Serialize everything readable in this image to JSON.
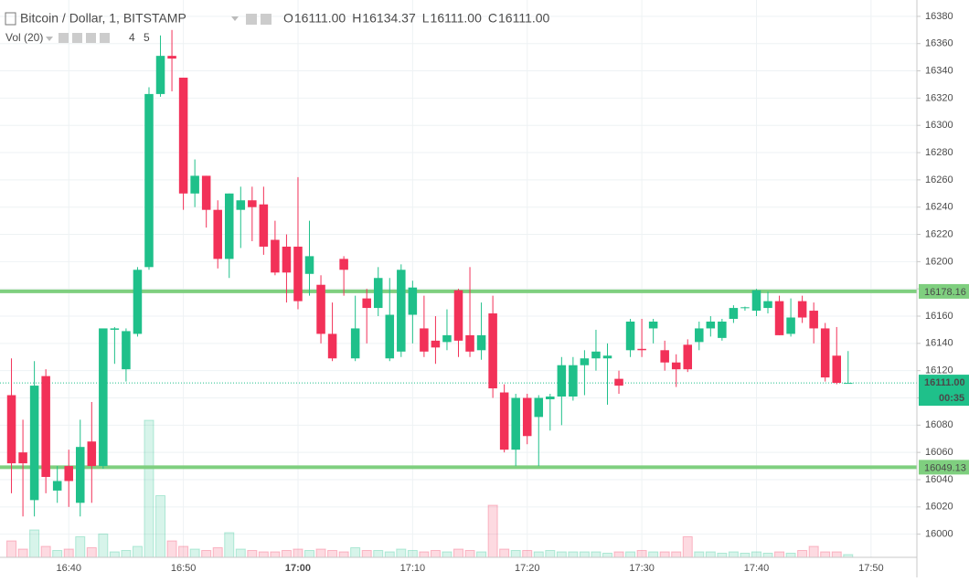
{
  "chart_data": {
    "type": "candlestick",
    "title": "Bitcoin / Dollar, 1, BITSTAMP",
    "legend_ohlc": [
      {
        "key": "O",
        "value": 16111,
        "label": "16111.00"
      },
      {
        "key": "H",
        "value": 16134.37,
        "label": "16134.37"
      },
      {
        "key": "L",
        "value": 16111,
        "label": "16111.00"
      },
      {
        "key": "C",
        "value": 16111,
        "label": "16111.00"
      }
    ],
    "volume_title": "Vol (20)",
    "volume_legend": [
      4,
      5
    ],
    "up_color": "#1fc08a",
    "down_color": "#f23158",
    "x": [
      "16:35",
      "16:36",
      "16:37",
      "16:38",
      "16:39",
      "16:40",
      "16:41",
      "16:42",
      "16:43",
      "16:44",
      "16:45",
      "16:46",
      "16:47",
      "16:48",
      "16:49",
      "16:50",
      "16:51",
      "16:52",
      "16:53",
      "16:54",
      "16:55",
      "16:56",
      "16:57",
      "16:58",
      "16:59",
      "17:00",
      "17:01",
      "17:02",
      "17:03",
      "17:04",
      "17:05",
      "17:06",
      "17:07",
      "17:08",
      "17:09",
      "17:10",
      "17:11",
      "17:12",
      "17:13",
      "17:14",
      "17:15",
      "17:16",
      "17:17",
      "17:18",
      "17:19",
      "17:20",
      "17:21",
      "17:22",
      "17:23",
      "17:24",
      "17:25",
      "17:26",
      "17:27",
      "17:28",
      "17:29",
      "17:30",
      "17:31",
      "17:32",
      "17:33",
      "17:34",
      "17:35",
      "17:36",
      "17:37",
      "17:38",
      "17:39",
      "17:40",
      "17:41",
      "17:42",
      "17:43",
      "17:44",
      "17:45",
      "17:46",
      "17:47",
      "17:48"
    ],
    "open": [
      16102,
      16060,
      16025,
      16116,
      16032,
      16050,
      16023,
      16068,
      16050,
      16150,
      16121,
      16147,
      16196,
      16323,
      16351,
      16335,
      16250,
      16263,
      16238,
      16202,
      16238,
      16245,
      16242,
      16216,
      16211,
      16211,
      16191,
      16183,
      16147,
      16202,
      16129,
      16173,
      16166,
      16129,
      16134,
      16161,
      16151,
      16142,
      16141,
      16179,
      16146,
      16135,
      16162,
      16104,
      16062,
      16100,
      16086,
      16099,
      16101,
      16101,
      16124,
      16129,
      16129,
      16114,
      16135,
      16136,
      16151,
      16135,
      16126,
      16139,
      16141,
      16151,
      16144,
      16158,
      16166,
      16164,
      16166,
      16171,
      16147,
      16171,
      16164,
      16151,
      16131,
      16111
    ],
    "high": [
      16129,
      16084,
      16127,
      16121,
      16050,
      16062,
      16084,
      16097,
      16151,
      16152,
      16151,
      16196,
      16328,
      16366,
      16370,
      16335,
      16275,
      16263,
      16245,
      16250,
      16255,
      16255,
      16255,
      16230,
      16220,
      16262,
      16230,
      16190,
      16170,
      16204,
      16175,
      16180,
      16196,
      16188,
      16198,
      16186,
      16175,
      16160,
      16165,
      16180,
      16196,
      16170,
      16175,
      16110,
      16103,
      16103,
      16102,
      16103,
      16130,
      16130,
      16135,
      16150,
      16140,
      16120,
      16158,
      16158,
      16158,
      16142,
      16132,
      16143,
      16156,
      16160,
      16158,
      16168,
      16167,
      16180,
      16178,
      16175,
      16173,
      16175,
      16170,
      16155,
      16152,
      16134.37
    ],
    "low": [
      16030,
      16013,
      16013,
      16030,
      16023,
      16020,
      16013,
      16023,
      16048,
      16125,
      16112,
      16145,
      16194,
      16321,
      16325,
      16238,
      16240,
      16225,
      16195,
      16188,
      16210,
      16215,
      16205,
      16190,
      16170,
      16165,
      16175,
      16140,
      16127,
      16175,
      16127,
      16140,
      16160,
      16127,
      16130,
      16140,
      16130,
      16125,
      16135,
      16130,
      16130,
      16128,
      16100,
      16060,
      16050,
      16066,
      16050,
      16076,
      16080,
      16098,
      16102,
      16120,
      16095,
      16103,
      16130,
      16130,
      16140,
      16120,
      16108,
      16119,
      16135,
      16145,
      16142,
      16155,
      16164,
      16160,
      16162,
      16146,
      16145,
      16155,
      16140,
      16112,
      16110,
      16111
    ],
    "close": [
      16052,
      16052,
      16109,
      16042,
      16039,
      16039,
      16064,
      16050,
      16151,
      16151,
      16149,
      16194,
      16323,
      16351,
      16349,
      16250,
      16263,
      16238,
      16202,
      16250,
      16245,
      16240,
      16211,
      16192,
      16192,
      16171,
      16204,
      16147,
      16129,
      16194,
      16151,
      16166,
      16188,
      16161,
      16194,
      16181,
      16134,
      16137,
      16146,
      16142,
      16134,
      16146,
      16107,
      16062,
      16100,
      16072,
      16100,
      16101,
      16124,
      16124,
      16129,
      16134,
      16131,
      16109,
      16156,
      16135,
      16156,
      16126,
      16121,
      16121,
      16151,
      16156,
      16156,
      16166,
      16166.5,
      16179,
      16171,
      16146,
      16159,
      16159,
      16151,
      16115,
      16111,
      16111
    ],
    "volume": [
      12,
      6,
      20,
      8,
      5,
      6,
      15,
      7,
      17,
      4,
      5,
      8,
      100,
      45,
      12,
      8,
      6,
      5,
      7,
      18,
      6,
      5,
      4,
      4,
      5,
      6,
      5,
      6,
      5,
      4,
      7,
      5,
      5,
      4,
      6,
      5,
      4,
      5,
      4,
      6,
      5,
      4,
      38,
      6,
      5,
      5,
      4,
      5,
      4,
      4,
      4,
      4,
      3,
      4,
      4,
      5,
      4,
      4,
      4,
      15,
      4,
      4,
      3,
      4,
      3,
      4,
      3,
      4,
      3,
      5,
      8,
      4,
      4,
      2
    ],
    "ylim": [
      15983,
      16392
    ],
    "yticks": [
      16000,
      16020,
      16040,
      16060,
      16080,
      16100,
      16120,
      16140,
      16160,
      16180,
      16200,
      16220,
      16240,
      16260,
      16280,
      16300,
      16320,
      16340,
      16360,
      16380
    ],
    "xlim": [
      "16:34",
      "17:54"
    ],
    "xticks": [
      "16:40",
      "16:50",
      "17:00",
      "17:10",
      "17:20",
      "17:30",
      "17:40",
      "17:50"
    ],
    "bold_xtick": "17:00",
    "levels": [
      {
        "value": 16178.16,
        "label": "16178.16",
        "color": "#7fcf7f"
      },
      {
        "value": 16049.13,
        "label": "16049.13",
        "color": "#7fcf7f"
      }
    ],
    "last_price": {
      "value": 16111,
      "label": "16111.00",
      "countdown": "00:35",
      "color": "#1fc08a"
    },
    "grid": true
  }
}
